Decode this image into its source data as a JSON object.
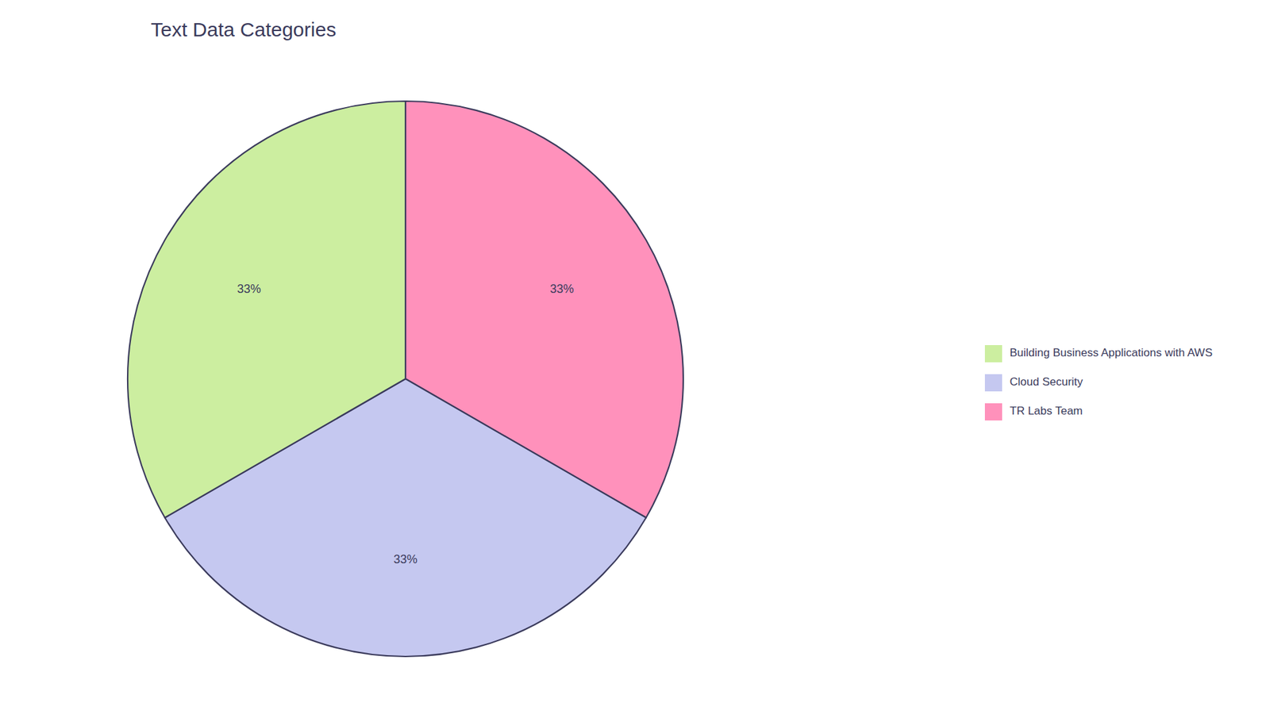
{
  "chart_data": {
    "type": "pie",
    "title": "Text Data Categories",
    "categories": [
      "TR Labs Team",
      "Cloud Security",
      "Building Business Applications with AWS"
    ],
    "values": [
      33,
      33,
      33
    ],
    "value_labels": [
      "33%",
      "33%",
      "33%"
    ],
    "colors": [
      "#FF91BB",
      "#C5C8F0",
      "#CCEEA0"
    ],
    "data_labels": true,
    "legend": "right"
  }
}
